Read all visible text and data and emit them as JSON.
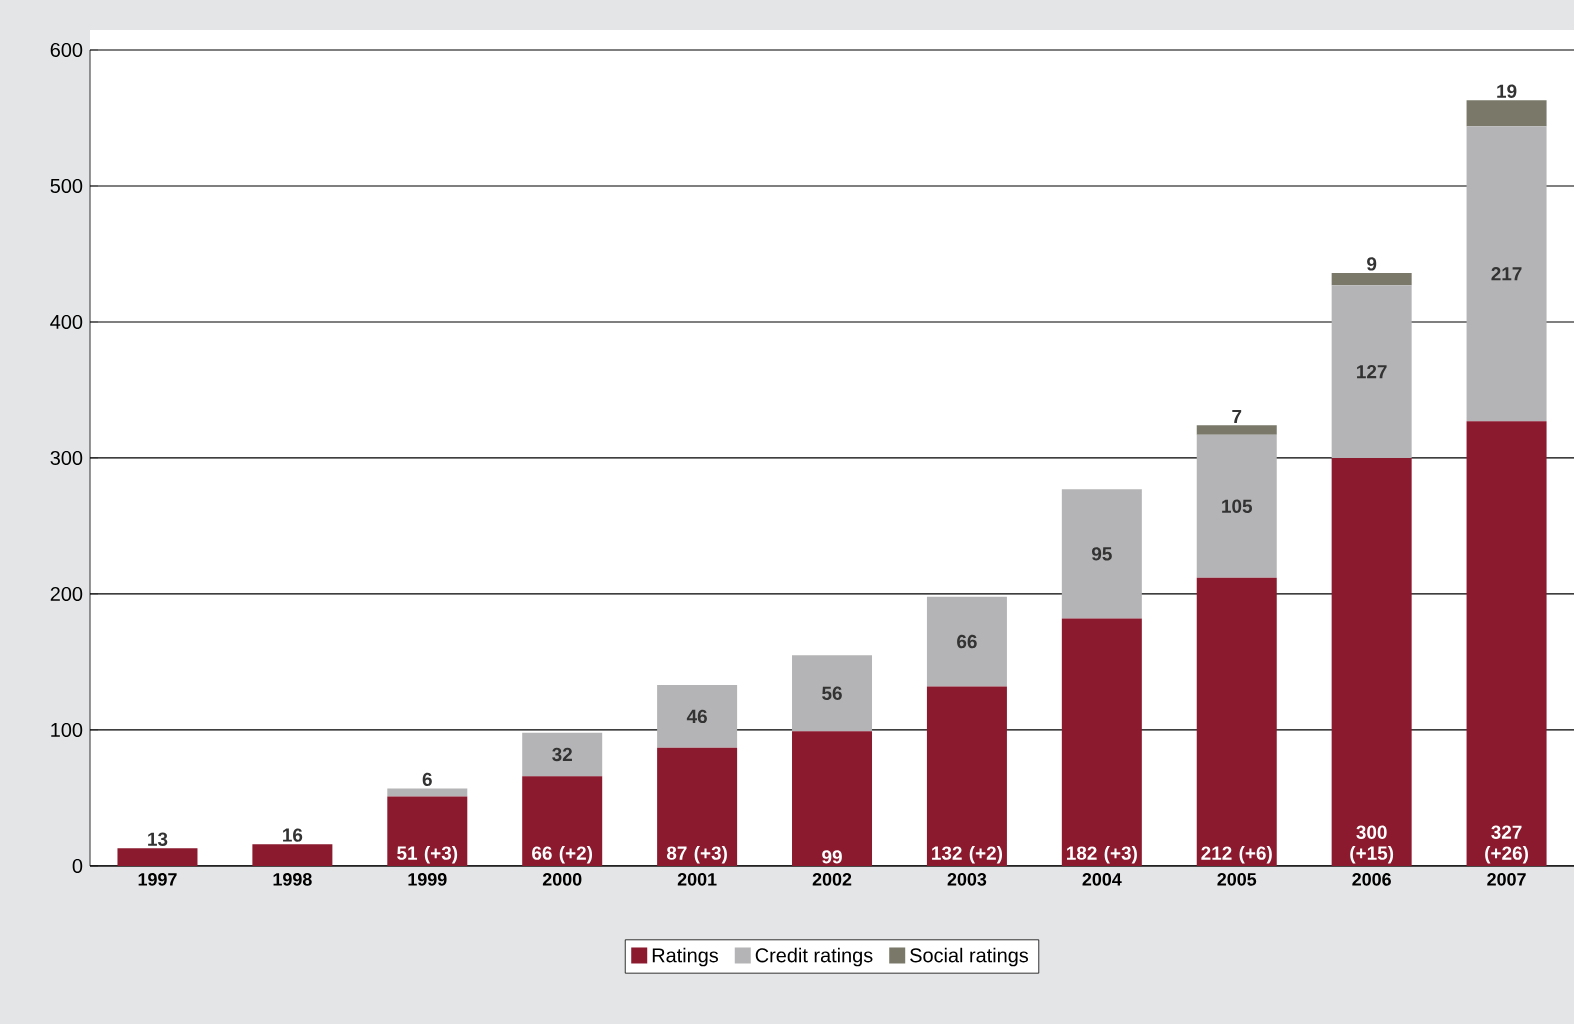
{
  "chart_data": {
    "type": "bar",
    "stacked": true,
    "categories": [
      "1997",
      "1998",
      "1999",
      "2000",
      "2001",
      "2002",
      "2003",
      "2004",
      "2005",
      "2006",
      "2007"
    ],
    "series": [
      {
        "name": "Ratings",
        "color": "#8b1a2e",
        "values": [
          13,
          16,
          51,
          66,
          87,
          99,
          132,
          182,
          212,
          300,
          327
        ],
        "value_labels": [
          "13",
          "16",
          "51 (+3)",
          "66 (+2)",
          "87 (+3)",
          "99",
          "132 (+2)",
          "182 (+3)",
          "212 (+6)",
          "300 (+15)",
          "327 (+26)"
        ]
      },
      {
        "name": "Credit ratings",
        "color": "#b4b4b6",
        "values": [
          null,
          null,
          6,
          32,
          46,
          56,
          66,
          95,
          105,
          127,
          217
        ],
        "value_labels": [
          null,
          null,
          "6",
          "32",
          "46",
          "56",
          "66",
          "95",
          "105",
          "127",
          "217"
        ]
      },
      {
        "name": "Social ratings",
        "color": "#7a7868",
        "values": [
          null,
          null,
          null,
          null,
          null,
          null,
          null,
          null,
          7,
          9,
          19
        ],
        "value_labels": [
          null,
          null,
          null,
          null,
          null,
          null,
          null,
          null,
          "7",
          "9",
          "19"
        ]
      }
    ],
    "ylim": [
      0,
      600
    ],
    "yticks": [
      0,
      100,
      200,
      300,
      400,
      500,
      600
    ],
    "grid": "y",
    "legend": "bottom"
  }
}
